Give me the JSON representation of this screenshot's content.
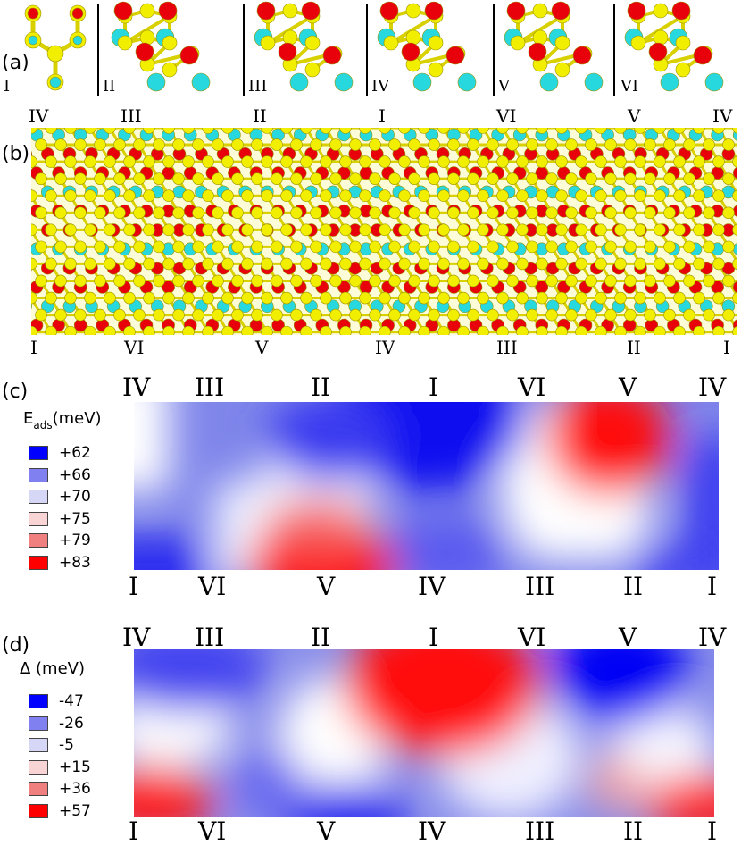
{
  "panels": {
    "a": {
      "label": "(a)",
      "units": [
        {
          "id": "I",
          "label": "I"
        },
        {
          "id": "II",
          "label": "II"
        },
        {
          "id": "III",
          "label": "III"
        },
        {
          "id": "IV",
          "label": "IV"
        },
        {
          "id": "V",
          "label": "V"
        },
        {
          "id": "VI",
          "label": "VI"
        }
      ]
    },
    "b": {
      "label": "(b)",
      "top_labels": [
        "IV",
        "III",
        "II",
        "I",
        "VI",
        "V",
        "IV"
      ],
      "bottom_labels": [
        "I",
        "VI",
        "V",
        "IV",
        "III",
        "II",
        "I"
      ]
    },
    "c": {
      "label": "(c)",
      "top_labels": [
        "IV",
        "III",
        "II",
        "I",
        "VI",
        "V",
        "IV"
      ],
      "bottom_labels": [
        "I",
        "VI",
        "V",
        "IV",
        "III",
        "II",
        "I"
      ],
      "legend": {
        "title_main": "E",
        "title_sub": "ads",
        "title_unit": "(meV)",
        "entries": [
          {
            "value": "+62",
            "color": "#0000ff"
          },
          {
            "value": "+66",
            "color": "#8080f0"
          },
          {
            "value": "+70",
            "color": "#d6d6f7"
          },
          {
            "value": "+75",
            "color": "#f8d4d4"
          },
          {
            "value": "+79",
            "color": "#f08080"
          },
          {
            "value": "+83",
            "color": "#ff0000"
          }
        ]
      }
    },
    "d": {
      "label": "(d)",
      "top_labels": [
        "IV",
        "III",
        "II",
        "I",
        "VI",
        "V",
        "IV"
      ],
      "bottom_labels": [
        "I",
        "VI",
        "V",
        "IV",
        "III",
        "II",
        "I"
      ],
      "legend": {
        "title": "Δ (meV)",
        "entries": [
          {
            "value": "-47",
            "color": "#0000ff"
          },
          {
            "value": "-26",
            "color": "#8080f0"
          },
          {
            "value": "-5",
            "color": "#d6d6f7"
          },
          {
            "value": "+15",
            "color": "#f8d4d4"
          },
          {
            "value": "+36",
            "color": "#f08080"
          },
          {
            "value": "+57",
            "color": "#ff0000"
          }
        ]
      }
    }
  },
  "colors": {
    "yellow_atom": "#f2ee00",
    "red_atom": "#e8000a",
    "cyan_atom": "#27d8de",
    "bond": "#d8d000",
    "heat_blue": "#0a0af0",
    "heat_red": "#f00a0a",
    "heat_white": "#ffffff"
  }
}
